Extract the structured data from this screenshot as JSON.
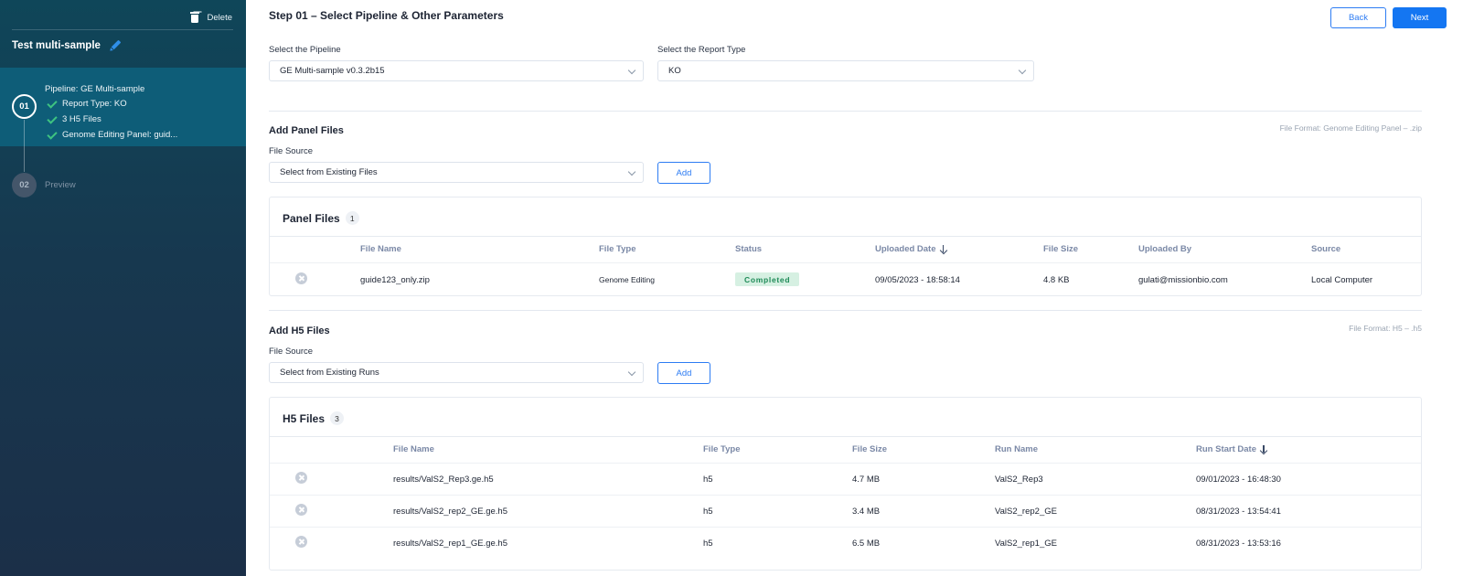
{
  "sidebar": {
    "delete_label": "Delete",
    "project_title": "Test multi-sample",
    "steps": [
      {
        "number": "01",
        "summary_title": "Pipeline: GE Multi-sample",
        "summary_items": [
          "Report Type: KO",
          "3 H5 Files",
          "Genome Editing Panel: guid..."
        ]
      },
      {
        "number": "02",
        "label": "Preview"
      }
    ]
  },
  "header": {
    "title": "Step 01 – Select Pipeline & Other Parameters",
    "back_label": "Back",
    "next_label": "Next"
  },
  "pipeline": {
    "label": "Select the Pipeline",
    "value": "GE Multi-sample v0.3.2b15"
  },
  "report_type": {
    "label": "Select the Report Type",
    "value": "KO"
  },
  "panel_section": {
    "title": "Add Panel Files",
    "format": "File Format: Genome Editing Panel – .zip",
    "source_label": "File Source",
    "source_value": "Select from Existing Files",
    "add_label": "Add",
    "card_title": "Panel Files",
    "count": "1",
    "columns": [
      "File Name",
      "File Type",
      "Status",
      "Uploaded Date",
      "File Size",
      "Uploaded By",
      "Source"
    ],
    "rows": [
      {
        "file_name": "guide123_only.zip",
        "file_type": "Genome Editing",
        "status": "Completed",
        "uploaded_date": "09/05/2023 - 18:58:14",
        "file_size": "4.8 KB",
        "uploaded_by": "gulati@missionbio.com",
        "source": "Local Computer"
      }
    ]
  },
  "h5_section": {
    "title": "Add H5 Files",
    "format": "File Format: H5 – .h5",
    "source_label": "File Source",
    "source_value": "Select from Existing Runs",
    "add_label": "Add",
    "card_title": "H5 Files",
    "count": "3",
    "columns": [
      "File Name",
      "File Type",
      "File Size",
      "Run Name",
      "Run Start Date"
    ],
    "rows": [
      {
        "file_name": "results/ValS2_Rep3.ge.h5",
        "file_type": "h5",
        "file_size": "4.7 MB",
        "run_name": "ValS2_Rep3",
        "run_start_date": "09/01/2023 - 16:48:30"
      },
      {
        "file_name": "results/ValS2_rep2_GE.ge.h5",
        "file_type": "h5",
        "file_size": "3.4 MB",
        "run_name": "ValS2_rep2_GE",
        "run_start_date": "08/31/2023 - 13:54:41"
      },
      {
        "file_name": "results/ValS2_rep1_GE.ge.h5",
        "file_type": "h5",
        "file_size": "6.5 MB",
        "run_name": "ValS2_rep1_GE",
        "run_start_date": "08/31/2023 - 13:53:16"
      }
    ]
  },
  "colors": {
    "sidebar_top": "#0f4659",
    "sidebar_active_step": "#0e5d78",
    "primary_blue": "#1476f2",
    "success_green": "#3ec381"
  }
}
